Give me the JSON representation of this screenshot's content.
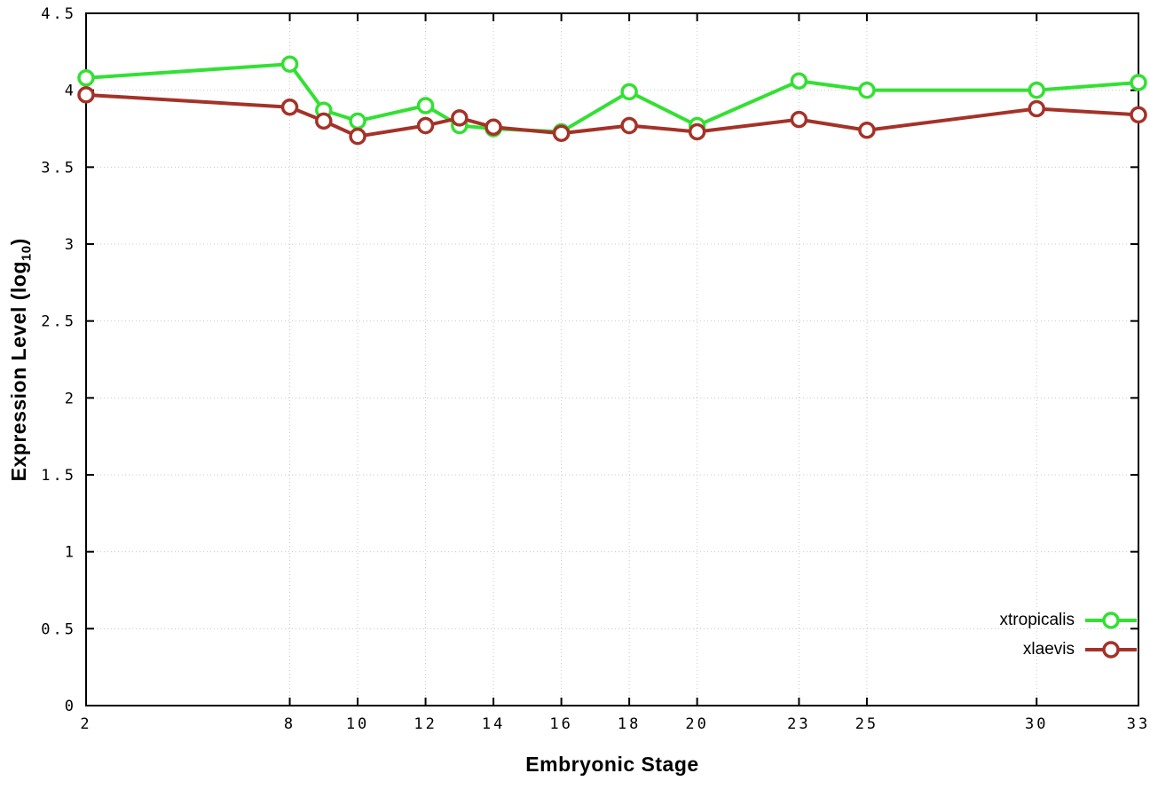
{
  "chart_data": {
    "type": "line",
    "xlabel": "Embryonic Stage",
    "ylabel_parts": {
      "main": "Expression Level (log",
      "sub": "10",
      "end": ")"
    },
    "x": [
      2,
      8,
      9,
      10,
      12,
      13,
      14,
      16,
      18,
      20,
      23,
      25,
      30,
      33
    ],
    "x_tick_labels": [
      "2",
      "8",
      "10",
      "12",
      "14",
      "16",
      "18",
      "20",
      "23",
      "25",
      "30",
      "33"
    ],
    "xlim": [
      2,
      33
    ],
    "y_tick_labels": [
      "0",
      "0.5",
      "1",
      "1.5",
      "2",
      "2.5",
      "3",
      "3.5",
      "4",
      "4.5"
    ],
    "ylim": [
      0,
      4.5
    ],
    "grid": true,
    "legend_position": "bottom-right",
    "series": [
      {
        "name": "xtropicalis",
        "color": "#33e033",
        "values": [
          4.08,
          4.17,
          3.87,
          3.8,
          3.9,
          3.77,
          3.75,
          3.73,
          3.99,
          3.77,
          4.06,
          4.0,
          4.0,
          4.05
        ]
      },
      {
        "name": "xlaevis",
        "color": "#a43228",
        "values": [
          3.97,
          3.89,
          3.8,
          3.7,
          3.77,
          3.82,
          3.76,
          3.72,
          3.77,
          3.73,
          3.81,
          3.74,
          3.88,
          3.84
        ]
      }
    ],
    "plot_style": {
      "grid_color": "#c8c8c8",
      "border_color": "#000000",
      "marker_fill": "#ffffff"
    }
  }
}
